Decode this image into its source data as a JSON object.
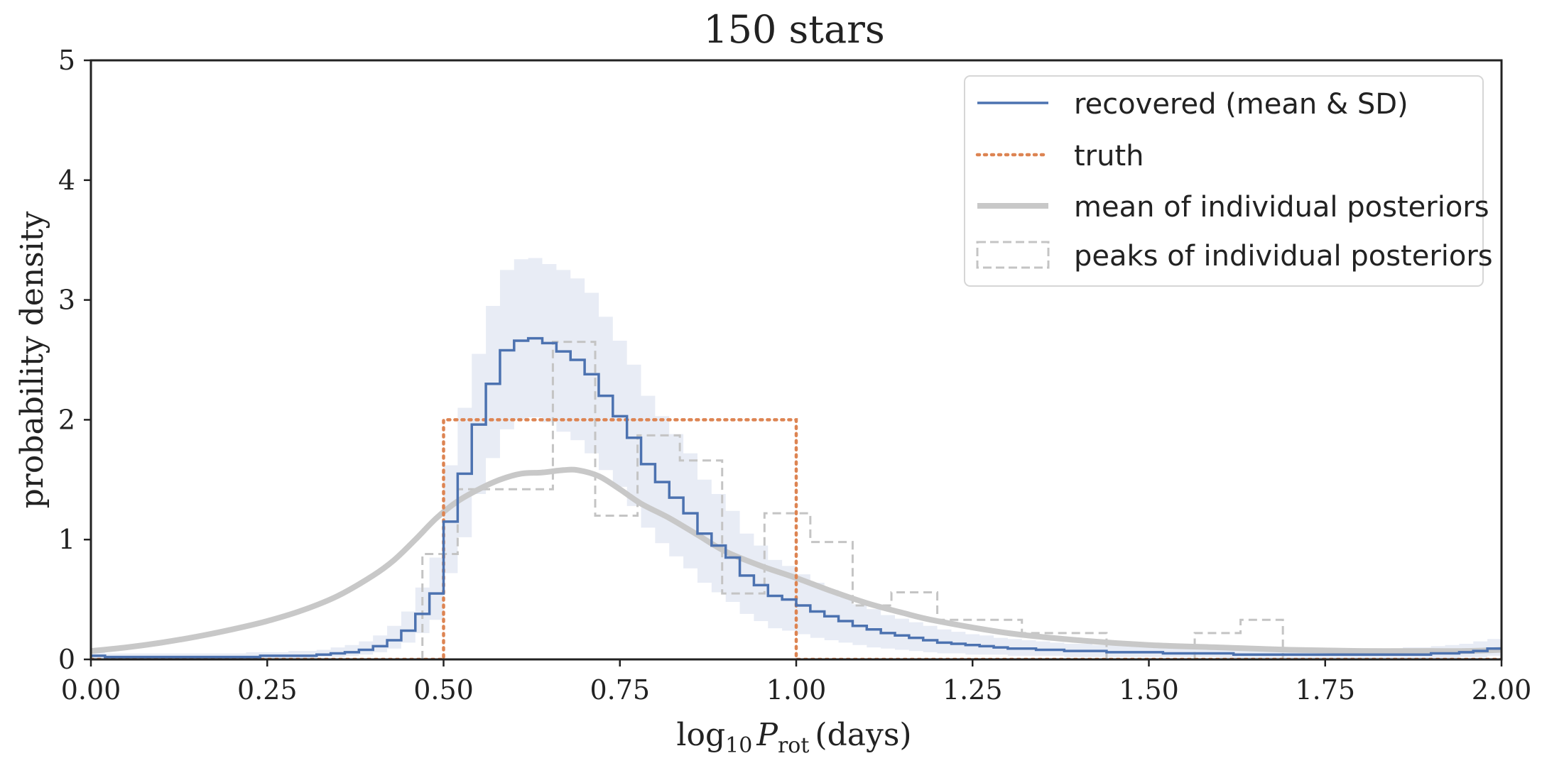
{
  "chart_data": {
    "type": "step",
    "title": "150 stars",
    "xlabel": {
      "main": "log",
      "sub10": "10",
      "var": "P",
      "sub": "rot",
      "unit": "(days)"
    },
    "ylabel": "probability density",
    "xlim": [
      0,
      2
    ],
    "ylim": [
      0,
      5
    ],
    "xticks": [
      "0.00",
      "0.25",
      "0.50",
      "0.75",
      "1.00",
      "1.25",
      "1.50",
      "1.75",
      "2.00"
    ],
    "yticks": [
      "0",
      "1",
      "2",
      "3",
      "4",
      "5"
    ],
    "grid": false,
    "legend_position": "top-right",
    "colors": {
      "recovered": "#4c72b0",
      "band": "#e6eaf4",
      "truth": "#dd8452",
      "mean_posteriors": "#c8c8c8",
      "peaks": "#c4c4c4",
      "axes": "#222222"
    },
    "series": [
      {
        "name": "recovered (mean & SD)",
        "style": "step",
        "bin_width": 0.02,
        "bin_starts": [
          0.0,
          0.02,
          0.04,
          0.06,
          0.08,
          0.1,
          0.12,
          0.14,
          0.16,
          0.18,
          0.2,
          0.22,
          0.24,
          0.26,
          0.28,
          0.3,
          0.32,
          0.34,
          0.36,
          0.38,
          0.4,
          0.42,
          0.44,
          0.46,
          0.48,
          0.5,
          0.52,
          0.54,
          0.56,
          0.58,
          0.6,
          0.62,
          0.64,
          0.66,
          0.68,
          0.7,
          0.72,
          0.74,
          0.76,
          0.78,
          0.8,
          0.82,
          0.84,
          0.86,
          0.88,
          0.9,
          0.92,
          0.94,
          0.96,
          0.98,
          1.0,
          1.02,
          1.04,
          1.06,
          1.08,
          1.1,
          1.12,
          1.14,
          1.16,
          1.18,
          1.2,
          1.22,
          1.24,
          1.26,
          1.28,
          1.3,
          1.32,
          1.34,
          1.36,
          1.38,
          1.4,
          1.42,
          1.44,
          1.46,
          1.48,
          1.5,
          1.52,
          1.54,
          1.56,
          1.58,
          1.6,
          1.62,
          1.64,
          1.66,
          1.68,
          1.7,
          1.72,
          1.74,
          1.76,
          1.78,
          1.8,
          1.82,
          1.84,
          1.86,
          1.88,
          1.9,
          1.92,
          1.94,
          1.96,
          1.98
        ],
        "mean": [
          0.03,
          0.02,
          0.02,
          0.02,
          0.02,
          0.02,
          0.02,
          0.02,
          0.02,
          0.02,
          0.02,
          0.02,
          0.03,
          0.03,
          0.03,
          0.03,
          0.04,
          0.05,
          0.06,
          0.08,
          0.11,
          0.16,
          0.24,
          0.38,
          0.55,
          1.15,
          1.55,
          1.96,
          2.3,
          2.58,
          2.66,
          2.68,
          2.64,
          2.57,
          2.5,
          2.38,
          2.2,
          2.03,
          1.85,
          1.63,
          1.48,
          1.35,
          1.22,
          1.05,
          0.95,
          0.85,
          0.7,
          0.62,
          0.53,
          0.5,
          0.45,
          0.4,
          0.36,
          0.32,
          0.28,
          0.25,
          0.22,
          0.2,
          0.18,
          0.16,
          0.14,
          0.13,
          0.12,
          0.11,
          0.1,
          0.09,
          0.09,
          0.08,
          0.08,
          0.07,
          0.07,
          0.07,
          0.06,
          0.06,
          0.06,
          0.06,
          0.05,
          0.05,
          0.05,
          0.05,
          0.05,
          0.04,
          0.04,
          0.04,
          0.04,
          0.04,
          0.04,
          0.04,
          0.04,
          0.04,
          0.04,
          0.04,
          0.04,
          0.04,
          0.04,
          0.05,
          0.05,
          0.06,
          0.07,
          0.09
        ],
        "lower": [
          0.01,
          0.01,
          0.01,
          0.01,
          0.01,
          0.01,
          0.01,
          0.01,
          0.01,
          0.01,
          0.01,
          0.01,
          0.01,
          0.01,
          0.01,
          0.01,
          0.02,
          0.02,
          0.03,
          0.04,
          0.06,
          0.09,
          0.14,
          0.22,
          0.33,
          0.72,
          1.02,
          1.38,
          1.68,
          1.92,
          2.0,
          2.02,
          1.98,
          1.9,
          1.83,
          1.72,
          1.58,
          1.44,
          1.28,
          1.1,
          0.97,
          0.86,
          0.76,
          0.64,
          0.56,
          0.48,
          0.38,
          0.32,
          0.26,
          0.24,
          0.21,
          0.18,
          0.16,
          0.14,
          0.12,
          0.1,
          0.09,
          0.08,
          0.07,
          0.06,
          0.05,
          0.05,
          0.04,
          0.04,
          0.04,
          0.03,
          0.03,
          0.03,
          0.03,
          0.02,
          0.02,
          0.02,
          0.02,
          0.02,
          0.02,
          0.02,
          0.02,
          0.02,
          0.02,
          0.02,
          0.01,
          0.01,
          0.01,
          0.01,
          0.01,
          0.01,
          0.01,
          0.01,
          0.01,
          0.01,
          0.01,
          0.01,
          0.01,
          0.01,
          0.01,
          0.01,
          0.01,
          0.02,
          0.02,
          0.03
        ],
        "upper": [
          0.06,
          0.05,
          0.05,
          0.05,
          0.05,
          0.05,
          0.05,
          0.05,
          0.05,
          0.05,
          0.05,
          0.06,
          0.06,
          0.06,
          0.07,
          0.07,
          0.08,
          0.1,
          0.12,
          0.15,
          0.2,
          0.28,
          0.4,
          0.6,
          0.85,
          1.62,
          2.1,
          2.55,
          2.95,
          3.25,
          3.34,
          3.35,
          3.3,
          3.25,
          3.18,
          3.06,
          2.86,
          2.66,
          2.46,
          2.2,
          2.03,
          1.88,
          1.72,
          1.5,
          1.38,
          1.24,
          1.05,
          0.95,
          0.83,
          0.78,
          0.71,
          0.64,
          0.58,
          0.52,
          0.46,
          0.42,
          0.37,
          0.34,
          0.31,
          0.28,
          0.25,
          0.23,
          0.21,
          0.2,
          0.18,
          0.17,
          0.16,
          0.15,
          0.14,
          0.13,
          0.13,
          0.12,
          0.12,
          0.11,
          0.11,
          0.11,
          0.1,
          0.1,
          0.1,
          0.1,
          0.1,
          0.09,
          0.09,
          0.09,
          0.09,
          0.09,
          0.09,
          0.09,
          0.09,
          0.09,
          0.09,
          0.09,
          0.09,
          0.1,
          0.1,
          0.11,
          0.12,
          0.13,
          0.15,
          0.17
        ]
      },
      {
        "name": "truth",
        "style": "dotted-step",
        "x": [
          0,
          0.5,
          0.5,
          1.0,
          1.0,
          2.0
        ],
        "y": [
          0,
          0,
          2,
          2,
          0,
          0
        ]
      },
      {
        "name": "mean of individual posteriors",
        "style": "smooth-line",
        "x": [
          0.0,
          0.05,
          0.1,
          0.15,
          0.2,
          0.25,
          0.3,
          0.35,
          0.4,
          0.43,
          0.46,
          0.49,
          0.52,
          0.55,
          0.58,
          0.61,
          0.64,
          0.67,
          0.69,
          0.72,
          0.75,
          0.78,
          0.82,
          0.86,
          0.9,
          0.95,
          1.0,
          1.05,
          1.1,
          1.15,
          1.2,
          1.3,
          1.4,
          1.5,
          1.6,
          1.7,
          1.8,
          1.9,
          1.95,
          2.0
        ],
        "y": [
          0.07,
          0.1,
          0.14,
          0.19,
          0.25,
          0.32,
          0.41,
          0.53,
          0.7,
          0.83,
          1.0,
          1.18,
          1.32,
          1.42,
          1.5,
          1.55,
          1.56,
          1.58,
          1.58,
          1.53,
          1.42,
          1.3,
          1.18,
          1.04,
          0.9,
          0.78,
          0.68,
          0.57,
          0.47,
          0.39,
          0.32,
          0.22,
          0.16,
          0.12,
          0.1,
          0.08,
          0.07,
          0.07,
          0.07,
          0.08
        ]
      },
      {
        "name": "peaks of individual posteriors",
        "style": "dashed-step",
        "bin_edges": [
          0.47,
          0.52,
          0.56,
          0.655,
          0.715,
          0.775,
          0.835,
          0.895,
          0.955,
          0.98,
          1.02,
          1.08,
          1.135,
          1.2,
          1.32,
          1.44,
          1.565,
          1.63,
          1.69
        ],
        "values": [
          0.88,
          1.42,
          1.42,
          2.65,
          1.2,
          1.87,
          1.66,
          0.55,
          1.22,
          1.22,
          0.98,
          0.45,
          0.56,
          0.33,
          0.22,
          0,
          0.22,
          0.33
        ]
      }
    ]
  }
}
